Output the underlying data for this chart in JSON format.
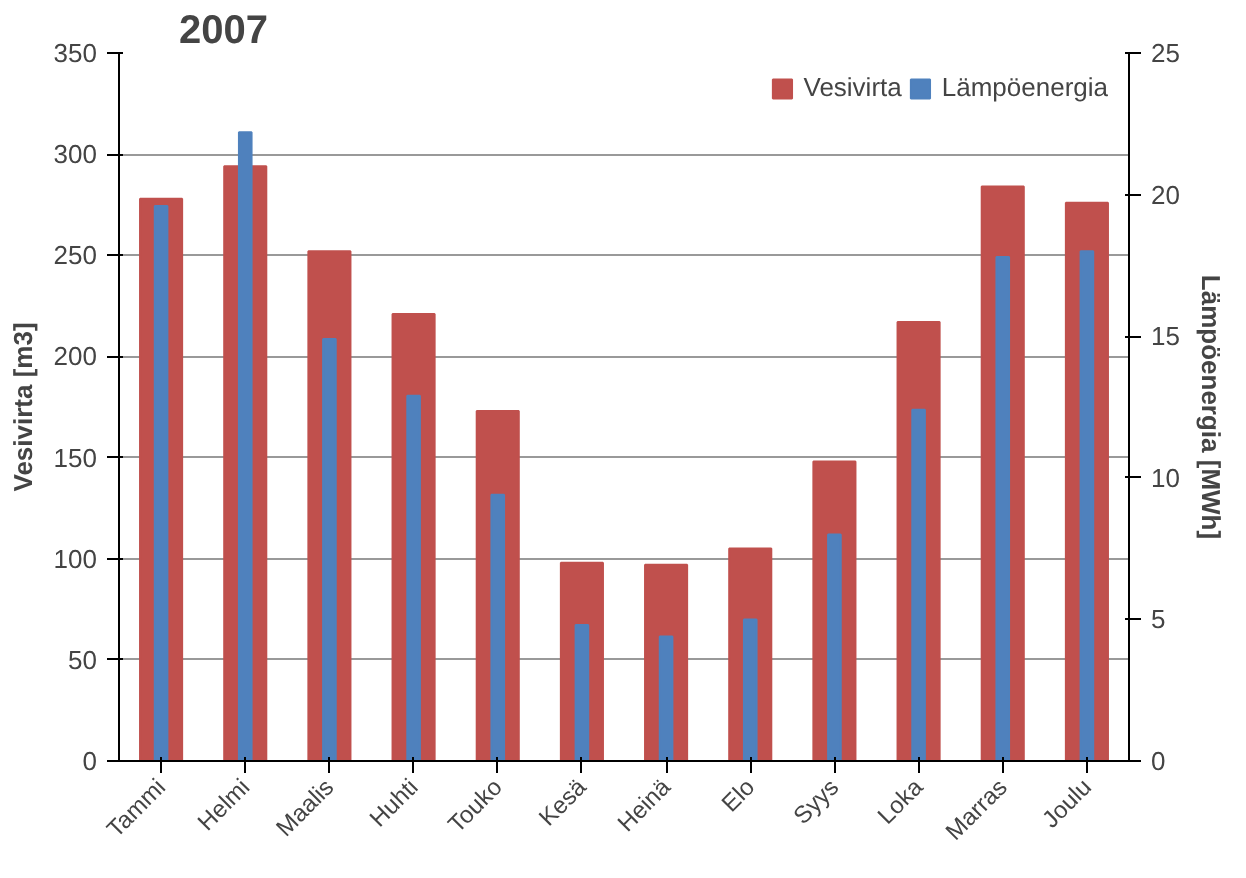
{
  "chart_data": {
    "type": "bar",
    "title": "2007",
    "ylabel": "Vesivirta [m3]",
    "y2label": "Lämpöenergia [MWh]",
    "categories": [
      "Tammi",
      "Helmi",
      "Maalis",
      "Huhti",
      "Touko",
      "Kesä",
      "Heinä",
      "Elo",
      "Syys",
      "Loka",
      "Marras",
      "Joulu"
    ],
    "series": [
      {
        "name": "Vesivirta",
        "color": "#c0504d",
        "values": [
          278,
          294,
          252,
          221,
          173,
          98,
          97,
          105,
          148,
          217,
          284,
          276
        ]
      },
      {
        "name": "Lämpöenergia",
        "color": "#4f81bd",
        "axis": "y2",
        "values": [
          19.6,
          22.2,
          14.9,
          12.9,
          9.4,
          4.8,
          4.4,
          5.0,
          8.0,
          12.4,
          17.8,
          18.0
        ]
      }
    ],
    "ylim": [
      0,
      350
    ],
    "yticks": [
      0,
      50,
      100,
      150,
      200,
      250,
      300,
      350
    ],
    "y2lim": [
      0,
      25
    ],
    "y2ticks": [
      0,
      5,
      10,
      15,
      20,
      25
    ],
    "grid": "y",
    "legend": "top right"
  }
}
